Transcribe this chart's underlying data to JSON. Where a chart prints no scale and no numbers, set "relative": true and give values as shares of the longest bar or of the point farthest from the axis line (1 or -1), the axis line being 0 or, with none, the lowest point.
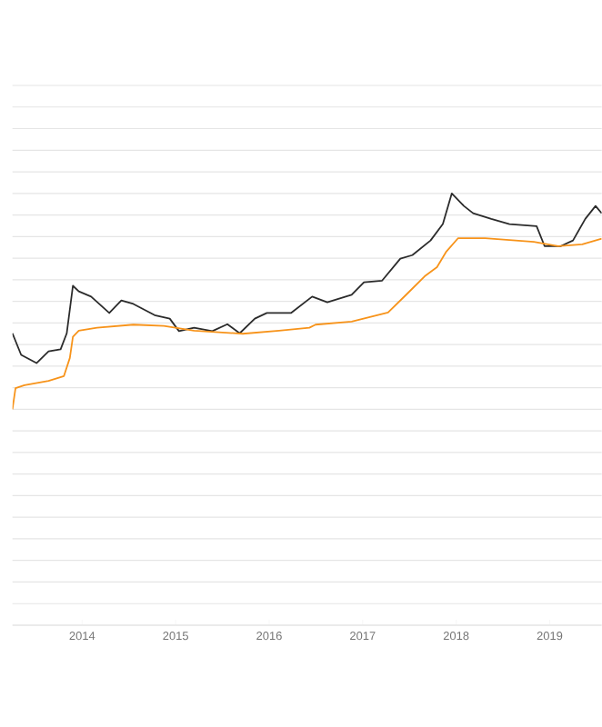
{
  "chart_data": {
    "type": "line",
    "relative": true,
    "grid": "y",
    "marker": "none",
    "line_style": "solid",
    "xlim": [
      "2013-04-04",
      "2019-07-23"
    ],
    "xticks": [
      {
        "value": "2014-01-01",
        "label": "2014"
      },
      {
        "value": "2015-01-01",
        "label": "2015"
      },
      {
        "value": "2016-01-01",
        "label": "2016"
      },
      {
        "value": "2017-01-01",
        "label": "2017"
      },
      {
        "value": "2018-01-01",
        "label": "2018"
      },
      {
        "value": "2019-01-01",
        "label": "2019"
      }
    ],
    "series": [
      {
        "color": "#2b2b2b",
        "x": [
          "2013-04-04",
          "2013-05-08",
          "2013-07-07",
          "2013-08-23",
          "2013-10-09",
          "2013-11-02",
          "2013-11-26",
          "2013-12-19",
          "2014-02-05",
          "2014-04-17",
          "2014-06-03",
          "2014-07-20",
          "2014-10-11",
          "2014-12-09",
          "2015-01-14",
          "2015-03-14",
          "2015-05-24",
          "2015-07-22",
          "2015-09-08",
          "2015-11-06",
          "2015-12-23",
          "2016-03-27",
          "2016-06-18",
          "2016-08-16",
          "2016-11-19",
          "2017-01-06",
          "2017-03-18",
          "2017-05-28",
          "2017-07-14",
          "2017-09-23",
          "2017-11-10",
          "2017-12-15",
          "2018-01-31",
          "2018-03-08",
          "2018-05-18",
          "2018-07-28",
          "2018-11-11",
          "2018-12-12",
          "2019-02-14",
          "2019-04-02",
          "2019-05-20",
          "2019-06-29",
          "2019-07-23"
        ],
        "values": [
          0.676,
          0.626,
          0.607,
          0.634,
          0.639,
          0.676,
          0.786,
          0.773,
          0.761,
          0.723,
          0.752,
          0.744,
          0.718,
          0.71,
          0.681,
          0.689,
          0.681,
          0.697,
          0.676,
          0.71,
          0.723,
          0.723,
          0.761,
          0.748,
          0.765,
          0.794,
          0.798,
          0.849,
          0.857,
          0.891,
          0.929,
          1,
          0.971,
          0.954,
          0.941,
          0.929,
          0.924,
          0.878,
          0.878,
          0.891,
          0.941,
          0.971,
          0.954
        ]
      },
      {
        "color": "#f7931a",
        "x": [
          "2013-04-04",
          "2013-04-16",
          "2013-05-21",
          "2013-08-23",
          "2013-10-22",
          "2013-11-14",
          "2013-11-26",
          "2013-12-19",
          "2014-02-28",
          "2014-07-20",
          "2014-11-16",
          "2015-03-14",
          "2015-09-20",
          "2016-02-09",
          "2016-06-07",
          "2016-07-01",
          "2016-11-19",
          "2017-04-10",
          "2017-06-21",
          "2017-08-31",
          "2017-10-18",
          "2017-11-22",
          "2018-01-08",
          "2018-04-24",
          "2018-10-31",
          "2019-02-03",
          "2019-05-08",
          "2019-07-23"
        ],
        "values": [
          0.5,
          0.549,
          0.556,
          0.566,
          0.577,
          0.619,
          0.668,
          0.682,
          0.689,
          0.696,
          0.693,
          0.682,
          0.675,
          0.682,
          0.689,
          0.696,
          0.703,
          0.724,
          0.766,
          0.808,
          0.829,
          0.864,
          0.896,
          0.896,
          0.888,
          0.878,
          0.882,
          0.895
        ]
      }
    ]
  }
}
